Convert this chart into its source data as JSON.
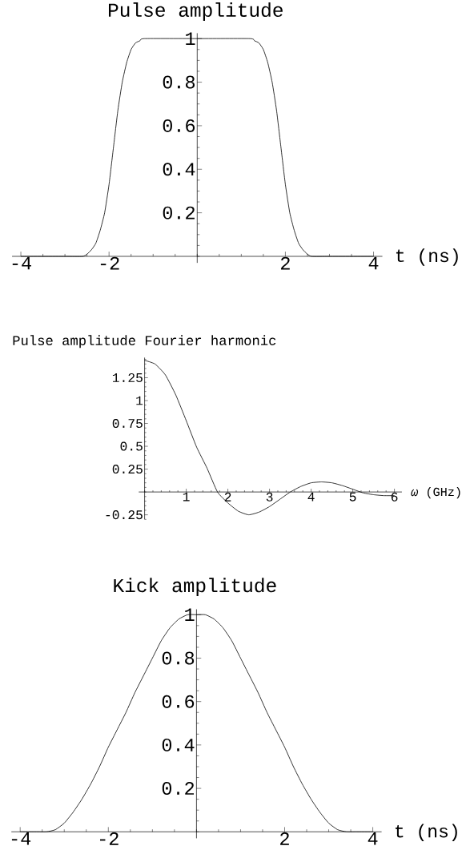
{
  "chart_data": [
    {
      "type": "line",
      "title": "Pulse amplitude",
      "xlabel": "t (ns)",
      "color": "#000000",
      "x": [
        -4,
        -3,
        -2.6,
        -2.5,
        -2.4,
        -2.3,
        -2.2,
        -2.1,
        -2.0,
        -1.9,
        -1.8,
        -1.7,
        -1.6,
        -1.5,
        -1.4,
        -1.3,
        -1.2,
        0,
        1.2,
        1.3,
        1.4,
        1.5,
        1.6,
        1.7,
        1.8,
        1.9,
        2.0,
        2.1,
        2.2,
        2.3,
        2.4,
        2.5,
        2.6,
        3,
        4
      ],
      "values": [
        0,
        0,
        0,
        0.01,
        0.03,
        0.06,
        0.12,
        0.2,
        0.33,
        0.5,
        0.67,
        0.8,
        0.89,
        0.95,
        0.98,
        0.99,
        1,
        1,
        1,
        0.99,
        0.98,
        0.95,
        0.89,
        0.8,
        0.67,
        0.5,
        0.33,
        0.2,
        0.12,
        0.06,
        0.03,
        0.01,
        0,
        0,
        0
      ],
      "xlim": [
        -4.2,
        4.2
      ],
      "ylim": [
        -0.03,
        1.025
      ],
      "xticks": [
        -4,
        -2,
        2,
        4
      ],
      "yticks": [
        0.2,
        0.4,
        0.6,
        0.8,
        1
      ]
    },
    {
      "type": "line",
      "title": "Pulse amplitude Fourier harmonic",
      "xlabel": "*ω* (GHz)",
      "color": "#000000",
      "x": [
        0,
        0.25,
        0.5,
        0.75,
        1.0,
        1.25,
        1.5,
        1.75,
        2.0,
        2.25,
        2.5,
        2.75,
        3.0,
        3.25,
        3.5,
        3.75,
        4.0,
        4.25,
        4.5,
        4.75,
        5.0,
        5.25,
        5.5,
        5.75,
        6.0
      ],
      "values": [
        1.44,
        1.4,
        1.28,
        1.06,
        0.78,
        0.49,
        0.26,
        0.0,
        -0.12,
        -0.21,
        -0.25,
        -0.22,
        -0.16,
        -0.08,
        0.0,
        0.06,
        0.1,
        0.11,
        0.1,
        0.07,
        0.03,
        -0.01,
        -0.03,
        -0.04,
        -0.04
      ],
      "xlim": [
        -0.14,
        6.18
      ],
      "ylim": [
        -0.3,
        1.47
      ],
      "xticks": [
        1,
        2,
        3,
        4,
        5,
        6
      ],
      "yticks": [
        -0.25,
        0.25,
        0.5,
        0.75,
        1,
        1.25
      ]
    },
    {
      "type": "line",
      "title": "Kick amplitude",
      "xlabel": "t (ns)",
      "color": "#000000",
      "x": [
        -4,
        -3.6,
        -3.4,
        -3.2,
        -3.0,
        -2.8,
        -2.6,
        -2.4,
        -2.2,
        -2.0,
        -1.8,
        -1.6,
        -1.4,
        -1.2,
        -1.0,
        -0.8,
        -0.6,
        -0.4,
        -0.2,
        0,
        0.2,
        0.4,
        0.6,
        0.8,
        1.0,
        1.2,
        1.4,
        1.6,
        1.8,
        2.0,
        2.2,
        2.4,
        2.6,
        2.8,
        3.0,
        3.2,
        3.4,
        3.6,
        4
      ],
      "values": [
        0,
        0,
        0,
        0.01,
        0.04,
        0.09,
        0.15,
        0.22,
        0.3,
        0.39,
        0.47,
        0.55,
        0.64,
        0.72,
        0.8,
        0.88,
        0.94,
        0.98,
        1.0,
        1.0,
        1.0,
        0.98,
        0.94,
        0.88,
        0.8,
        0.72,
        0.64,
        0.55,
        0.47,
        0.39,
        0.3,
        0.22,
        0.15,
        0.09,
        0.04,
        0.01,
        0,
        0,
        0
      ],
      "xlim": [
        -4.2,
        4.2
      ],
      "ylim": [
        -0.03,
        1.025
      ],
      "xticks": [
        -4,
        -2,
        2,
        4
      ],
      "yticks": [
        0.2,
        0.4,
        0.6,
        0.8,
        1
      ]
    }
  ]
}
